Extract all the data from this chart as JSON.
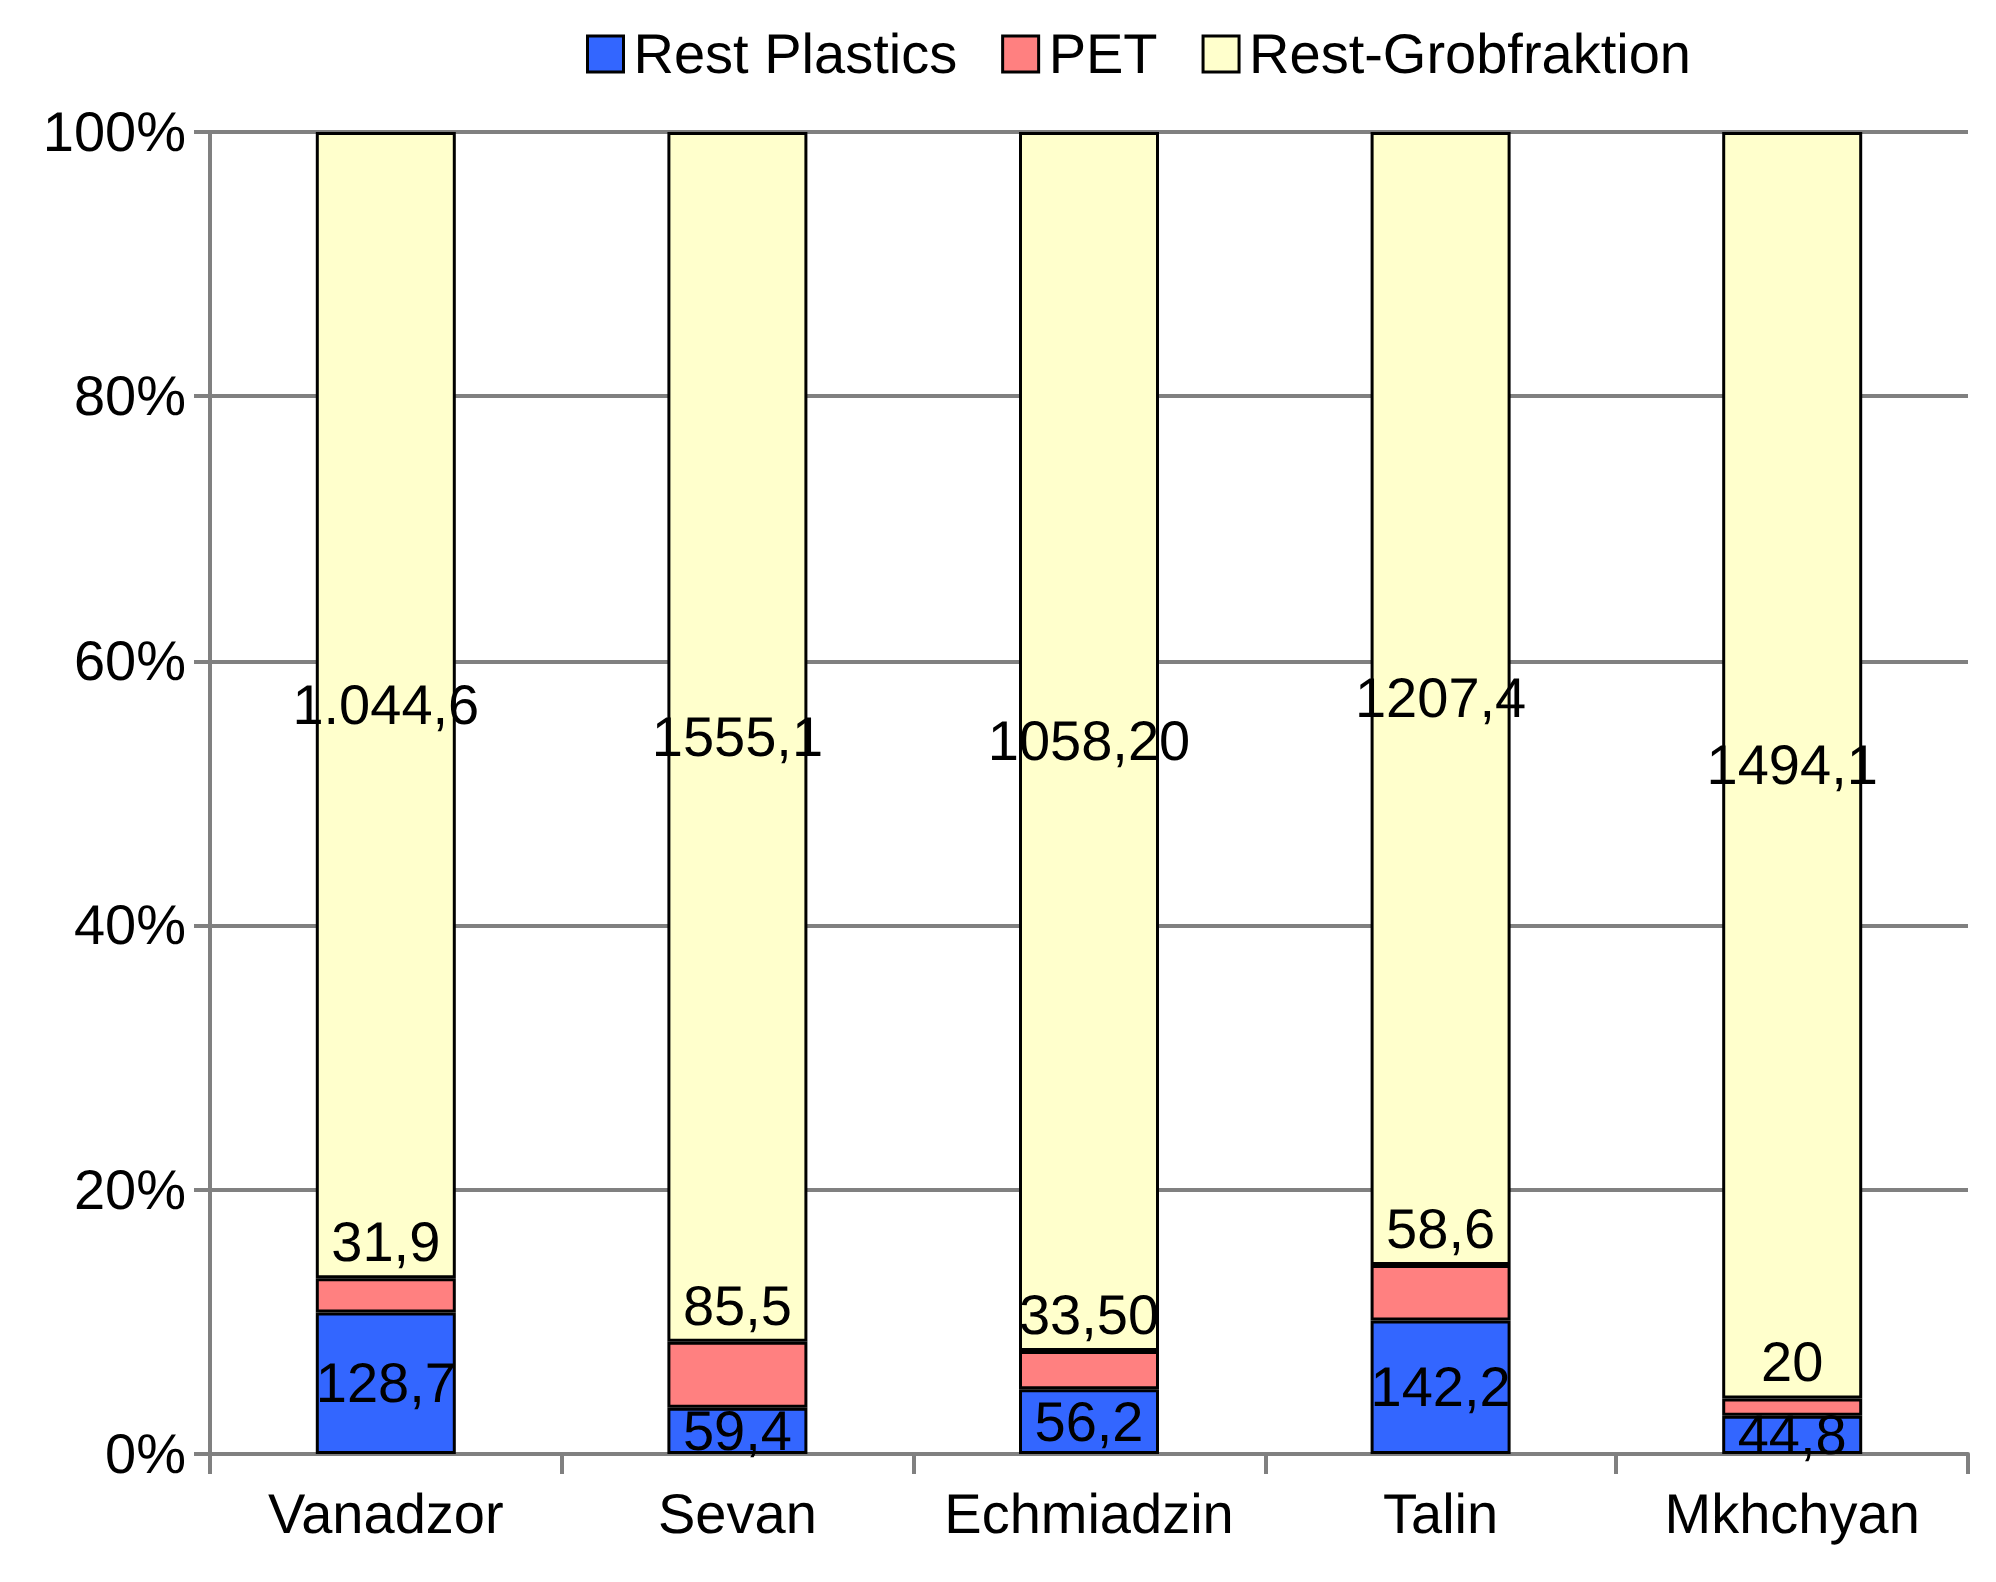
{
  "chart_data": {
    "type": "bar",
    "stacked": true,
    "categories": [
      "Vanadzor",
      "Sevan",
      "Echmiadzin",
      "Talin",
      "Mkhchyan"
    ],
    "series": [
      {
        "name": "Rest Plastics",
        "color": "#3366ff",
        "values": [
          10.7,
          3.5,
          4.9,
          10.1,
          2.9
        ]
      },
      {
        "name": "PET",
        "color": "#ff8080",
        "values": [
          2.6,
          5.0,
          2.9,
          4.2,
          1.3
        ]
      },
      {
        "name": "Rest-Grobfraktion",
        "color": "#ffffcc",
        "values": [
          86.7,
          91.5,
          92.2,
          85.7,
          95.8
        ]
      }
    ],
    "annotations": [
      "128,7",
      "31,9",
      "1.044,6",
      "59,4",
      "85,5",
      "1555,1",
      "56,2",
      "33,50",
      "1058,20",
      "142,2",
      "58,6",
      "1207,4",
      "44,8",
      "20",
      "1494,1"
    ],
    "ylim": [
      0,
      100
    ],
    "yticks": [
      {
        "value": 0,
        "label": "0%"
      },
      {
        "value": 20,
        "label": "20%"
      },
      {
        "value": 40,
        "label": "40%"
      },
      {
        "value": 60,
        "label": "60%"
      },
      {
        "value": 80,
        "label": "80%"
      },
      {
        "value": 100,
        "label": "100%"
      }
    ],
    "grid": "y",
    "legend": "top"
  }
}
